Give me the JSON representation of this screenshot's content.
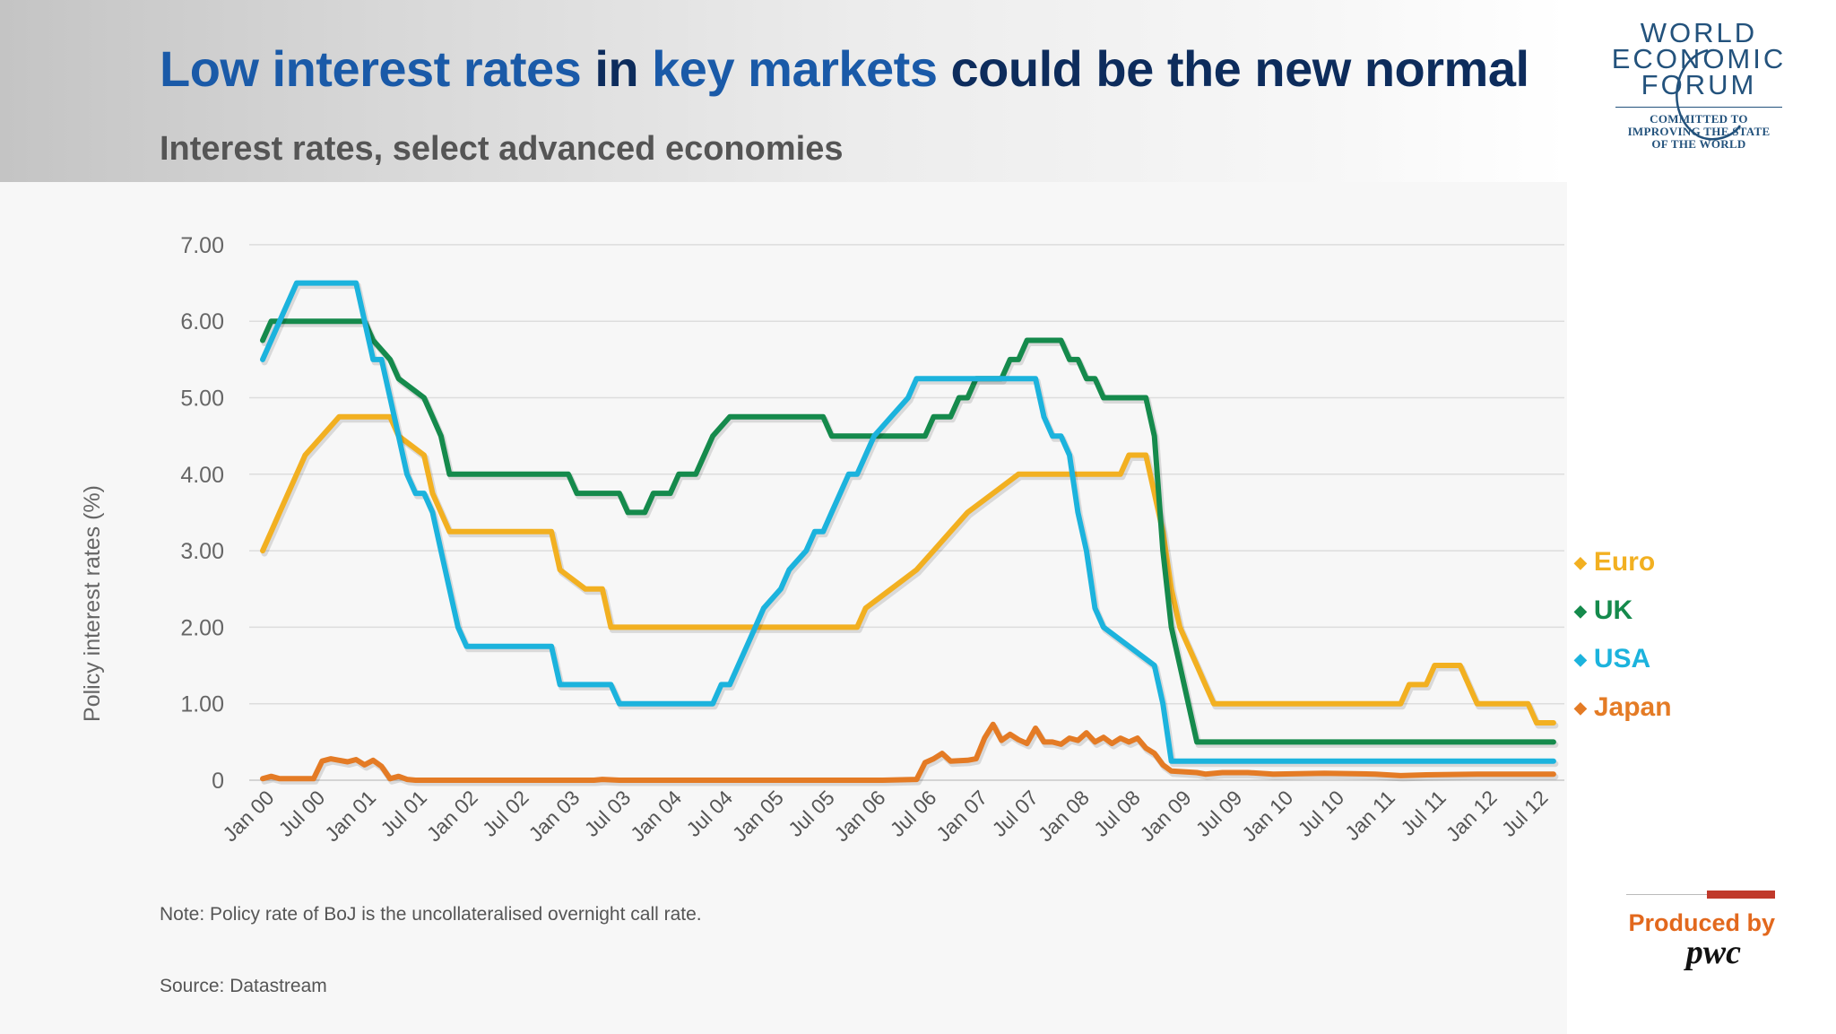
{
  "header": {
    "title_part1": "Low interest rates",
    "title_part2": " in ",
    "title_part3": "key markets",
    "title_part4": " could be the new normal",
    "subtitle": "Interest rates, select advanced economies"
  },
  "logo": {
    "line1": "WORLD",
    "line2": "ECONOMIC",
    "line3": "FORUM",
    "tagline1": "COMMITTED TO",
    "tagline2": "IMPROVING THE STATE",
    "tagline3": "OF THE WORLD"
  },
  "footer": {
    "note": "Note: Policy rate of BoJ is the uncollateralised overnight call rate.",
    "source": "Source: Datastream",
    "produced_by": "Produced by",
    "producer": "pwc"
  },
  "colors": {
    "euro": "#f2b021",
    "uk": "#158a4c",
    "usa": "#1cb3dd",
    "japan": "#e47b25",
    "title_highlight": "#1a5aa8",
    "title_dark": "#0d2c5c"
  },
  "chart_data": {
    "type": "line",
    "title": "Interest rates, select advanced economies",
    "xlabel": "",
    "ylabel": "Policy interest rates (%)",
    "ylim": [
      0,
      7
    ],
    "yticks": [
      0,
      1,
      2,
      3,
      4,
      5,
      6,
      7
    ],
    "ytick_labels": [
      "0",
      "1.00",
      "2.00",
      "3.00",
      "4.00",
      "5.00",
      "6.00",
      "7.00"
    ],
    "x_range": [
      "Jan 00",
      "Jul 12"
    ],
    "xtick_labels": [
      "Jan 00",
      "Jul 00",
      "Jan 01",
      "Jul 01",
      "Jan 02",
      "Jul 02",
      "Jan 03",
      "Jul 03",
      "Jan 04",
      "Jul 04",
      "Jan 05",
      "Jul 05",
      "Jan 06",
      "Jul 06",
      "Jan 07",
      "Jul 07",
      "Jan 08",
      "Jul 08",
      "Jan 09",
      "Jul 09",
      "Jan 10",
      "Jul 10",
      "Jan 11",
      "Jul 11",
      "Jan 12",
      "Jul 12"
    ],
    "grid": true,
    "legend": "right",
    "series": [
      {
        "name": "Euro",
        "points": [
          [
            "Jan 00",
            3.0
          ],
          [
            "Feb 00",
            3.25
          ],
          [
            "Mar 00",
            3.5
          ],
          [
            "Apr 00",
            3.75
          ],
          [
            "Jun 00",
            4.25
          ],
          [
            "Aug 00",
            4.5
          ],
          [
            "Oct 00",
            4.75
          ],
          [
            "Apr 01",
            4.75
          ],
          [
            "May 01",
            4.5
          ],
          [
            "Aug 01",
            4.25
          ],
          [
            "Sep 01",
            3.75
          ],
          [
            "Nov 01",
            3.25
          ],
          [
            "Nov 02",
            3.25
          ],
          [
            "Dec 02",
            2.75
          ],
          [
            "Mar 03",
            2.5
          ],
          [
            "May 03",
            2.5
          ],
          [
            "Jun 03",
            2.0
          ],
          [
            "Nov 05",
            2.0
          ],
          [
            "Dec 05",
            2.25
          ],
          [
            "Mar 06",
            2.5
          ],
          [
            "Jun 06",
            2.75
          ],
          [
            "Aug 06",
            3.0
          ],
          [
            "Oct 06",
            3.25
          ],
          [
            "Dec 06",
            3.5
          ],
          [
            "Mar 07",
            3.75
          ],
          [
            "Jun 07",
            4.0
          ],
          [
            "Jun 08",
            4.0
          ],
          [
            "Jul 08",
            4.25
          ],
          [
            "Sep 08",
            4.25
          ],
          [
            "Oct 08",
            3.75
          ],
          [
            "Nov 08",
            3.25
          ],
          [
            "Dec 08",
            2.5
          ],
          [
            "Jan 09",
            2.0
          ],
          [
            "Mar 09",
            1.5
          ],
          [
            "Apr 09",
            1.25
          ],
          [
            "May 09",
            1.0
          ],
          [
            "Mar 11",
            1.0
          ],
          [
            "Apr 11",
            1.25
          ],
          [
            "Jun 11",
            1.25
          ],
          [
            "Jul 11",
            1.5
          ],
          [
            "Oct 11",
            1.5
          ],
          [
            "Nov 11",
            1.25
          ],
          [
            "Dec 11",
            1.0
          ],
          [
            "Jun 12",
            1.0
          ],
          [
            "Jul 12",
            0.75
          ],
          [
            "Sep 12",
            0.75
          ]
        ]
      },
      {
        "name": "UK",
        "points": [
          [
            "Jan 00",
            5.75
          ],
          [
            "Feb 00",
            6.0
          ],
          [
            "Jan 01",
            6.0
          ],
          [
            "Feb 01",
            5.75
          ],
          [
            "Apr 01",
            5.5
          ],
          [
            "May 01",
            5.25
          ],
          [
            "Aug 01",
            5.0
          ],
          [
            "Sep 01",
            4.75
          ],
          [
            "Oct 01",
            4.5
          ],
          [
            "Nov 01",
            4.0
          ],
          [
            "Jan 03",
            4.0
          ],
          [
            "Feb 03",
            3.75
          ],
          [
            "Jul 03",
            3.75
          ],
          [
            "Aug 03",
            3.5
          ],
          [
            "Oct 03",
            3.5
          ],
          [
            "Nov 03",
            3.75
          ],
          [
            "Jan 04",
            3.75
          ],
          [
            "Feb 04",
            4.0
          ],
          [
            "Apr 04",
            4.0
          ],
          [
            "May 04",
            4.25
          ],
          [
            "Jun 04",
            4.5
          ],
          [
            "Aug 04",
            4.75
          ],
          [
            "Jul 05",
            4.75
          ],
          [
            "Aug 05",
            4.5
          ],
          [
            "Jul 06",
            4.5
          ],
          [
            "Aug 06",
            4.75
          ],
          [
            "Oct 06",
            4.75
          ],
          [
            "Nov 06",
            5.0
          ],
          [
            "Dec 06",
            5.0
          ],
          [
            "Jan 07",
            5.25
          ],
          [
            "Apr 07",
            5.25
          ],
          [
            "May 07",
            5.5
          ],
          [
            "Jun 07",
            5.5
          ],
          [
            "Jul 07",
            5.75
          ],
          [
            "Nov 07",
            5.75
          ],
          [
            "Dec 07",
            5.5
          ],
          [
            "Jan 08",
            5.5
          ],
          [
            "Feb 08",
            5.25
          ],
          [
            "Mar 08",
            5.25
          ],
          [
            "Apr 08",
            5.0
          ],
          [
            "Sep 08",
            5.0
          ],
          [
            "Oct 08",
            4.5
          ],
          [
            "Nov 08",
            3.0
          ],
          [
            "Dec 08",
            2.0
          ],
          [
            "Jan 09",
            1.5
          ],
          [
            "Feb 09",
            1.0
          ],
          [
            "Mar 09",
            0.5
          ],
          [
            "Sep 12",
            0.5
          ]
        ]
      },
      {
        "name": "USA",
        "points": [
          [
            "Jan 00",
            5.5
          ],
          [
            "Feb 00",
            5.75
          ],
          [
            "Mar 00",
            6.0
          ],
          [
            "May 00",
            6.5
          ],
          [
            "Dec 00",
            6.5
          ],
          [
            "Jan 01",
            6.0
          ],
          [
            "Feb 01",
            5.5
          ],
          [
            "Mar 01",
            5.5
          ],
          [
            "Apr 01",
            5.0
          ],
          [
            "May 01",
            4.5
          ],
          [
            "Jun 01",
            4.0
          ],
          [
            "Jul 01",
            3.75
          ],
          [
            "Aug 01",
            3.75
          ],
          [
            "Sep 01",
            3.5
          ],
          [
            "Oct 01",
            3.0
          ],
          [
            "Nov 01",
            2.5
          ],
          [
            "Dec 01",
            2.0
          ],
          [
            "Jan 02",
            1.75
          ],
          [
            "Nov 02",
            1.75
          ],
          [
            "Dec 02",
            1.25
          ],
          [
            "Jun 03",
            1.25
          ],
          [
            "Jul 03",
            1.0
          ],
          [
            "Jun 04",
            1.0
          ],
          [
            "Jul 04",
            1.25
          ],
          [
            "Aug 04",
            1.25
          ],
          [
            "Sep 04",
            1.5
          ],
          [
            "Oct 04",
            1.75
          ],
          [
            "Nov 04",
            2.0
          ],
          [
            "Dec 04",
            2.25
          ],
          [
            "Feb 05",
            2.5
          ],
          [
            "Mar 05",
            2.75
          ],
          [
            "May 05",
            3.0
          ],
          [
            "Jun 05",
            3.25
          ],
          [
            "Jul 05",
            3.25
          ],
          [
            "Aug 05",
            3.5
          ],
          [
            "Sep 05",
            3.75
          ],
          [
            "Oct 05",
            4.0
          ],
          [
            "Nov 05",
            4.0
          ],
          [
            "Dec 05",
            4.25
          ],
          [
            "Jan 06",
            4.5
          ],
          [
            "Mar 06",
            4.75
          ],
          [
            "May 06",
            5.0
          ],
          [
            "Jun 06",
            5.25
          ],
          [
            "Aug 07",
            5.25
          ],
          [
            "Sep 07",
            4.75
          ],
          [
            "Oct 07",
            4.5
          ],
          [
            "Nov 07",
            4.5
          ],
          [
            "Dec 07",
            4.25
          ],
          [
            "Jan 08",
            3.5
          ],
          [
            "Feb 08",
            3.0
          ],
          [
            "Mar 08",
            2.25
          ],
          [
            "Apr 08",
            2.0
          ],
          [
            "Oct 08",
            1.5
          ],
          [
            "Nov 08",
            1.0
          ],
          [
            "Dec 08",
            0.25
          ],
          [
            "Sep 12",
            0.25
          ]
        ]
      },
      {
        "name": "Japan",
        "points": [
          [
            "Jan 00",
            0.02
          ],
          [
            "Feb 00",
            0.05
          ],
          [
            "Mar 00",
            0.02
          ],
          [
            "Jul 00",
            0.02
          ],
          [
            "Aug 00",
            0.25
          ],
          [
            "Sep 00",
            0.28
          ],
          [
            "Oct 00",
            0.26
          ],
          [
            "Nov 00",
            0.24
          ],
          [
            "Dec 00",
            0.27
          ],
          [
            "Jan 01",
            0.2
          ],
          [
            "Feb 01",
            0.26
          ],
          [
            "Mar 01",
            0.18
          ],
          [
            "Apr 01",
            0.02
          ],
          [
            "May 01",
            0.05
          ],
          [
            "Jun 01",
            0.01
          ],
          [
            "Jul 01",
            0.0
          ],
          [
            "Apr 03",
            0.0
          ],
          [
            "May 03",
            0.01
          ],
          [
            "Jul 03",
            0.0
          ],
          [
            "Feb 06",
            0.0
          ],
          [
            "Jun 06",
            0.01
          ],
          [
            "Jul 06",
            0.23
          ],
          [
            "Aug 06",
            0.28
          ],
          [
            "Sep 06",
            0.35
          ],
          [
            "Oct 06",
            0.25
          ],
          [
            "Dec 06",
            0.26
          ],
          [
            "Jan 07",
            0.28
          ],
          [
            "Feb 07",
            0.55
          ],
          [
            "Mar 07",
            0.73
          ],
          [
            "Apr 07",
            0.52
          ],
          [
            "May 07",
            0.6
          ],
          [
            "Jun 07",
            0.53
          ],
          [
            "Jul 07",
            0.48
          ],
          [
            "Aug 07",
            0.68
          ],
          [
            "Sep 07",
            0.5
          ],
          [
            "Oct 07",
            0.5
          ],
          [
            "Nov 07",
            0.47
          ],
          [
            "Dec 07",
            0.55
          ],
          [
            "Jan 08",
            0.52
          ],
          [
            "Feb 08",
            0.62
          ],
          [
            "Mar 08",
            0.5
          ],
          [
            "Apr 08",
            0.56
          ],
          [
            "May 08",
            0.48
          ],
          [
            "Jun 08",
            0.55
          ],
          [
            "Jul 08",
            0.5
          ],
          [
            "Aug 08",
            0.55
          ],
          [
            "Sep 08",
            0.42
          ],
          [
            "Oct 08",
            0.35
          ],
          [
            "Nov 08",
            0.2
          ],
          [
            "Dec 08",
            0.12
          ],
          [
            "Mar 09",
            0.1
          ],
          [
            "Apr 09",
            0.08
          ],
          [
            "Jun 09",
            0.1
          ],
          [
            "Sep 09",
            0.1
          ],
          [
            "Dec 09",
            0.08
          ],
          [
            "Jun 10",
            0.09
          ],
          [
            "Dec 10",
            0.08
          ],
          [
            "Mar 11",
            0.06
          ],
          [
            "Jun 11",
            0.07
          ],
          [
            "Dec 11",
            0.08
          ],
          [
            "Sep 12",
            0.08
          ]
        ]
      }
    ]
  }
}
